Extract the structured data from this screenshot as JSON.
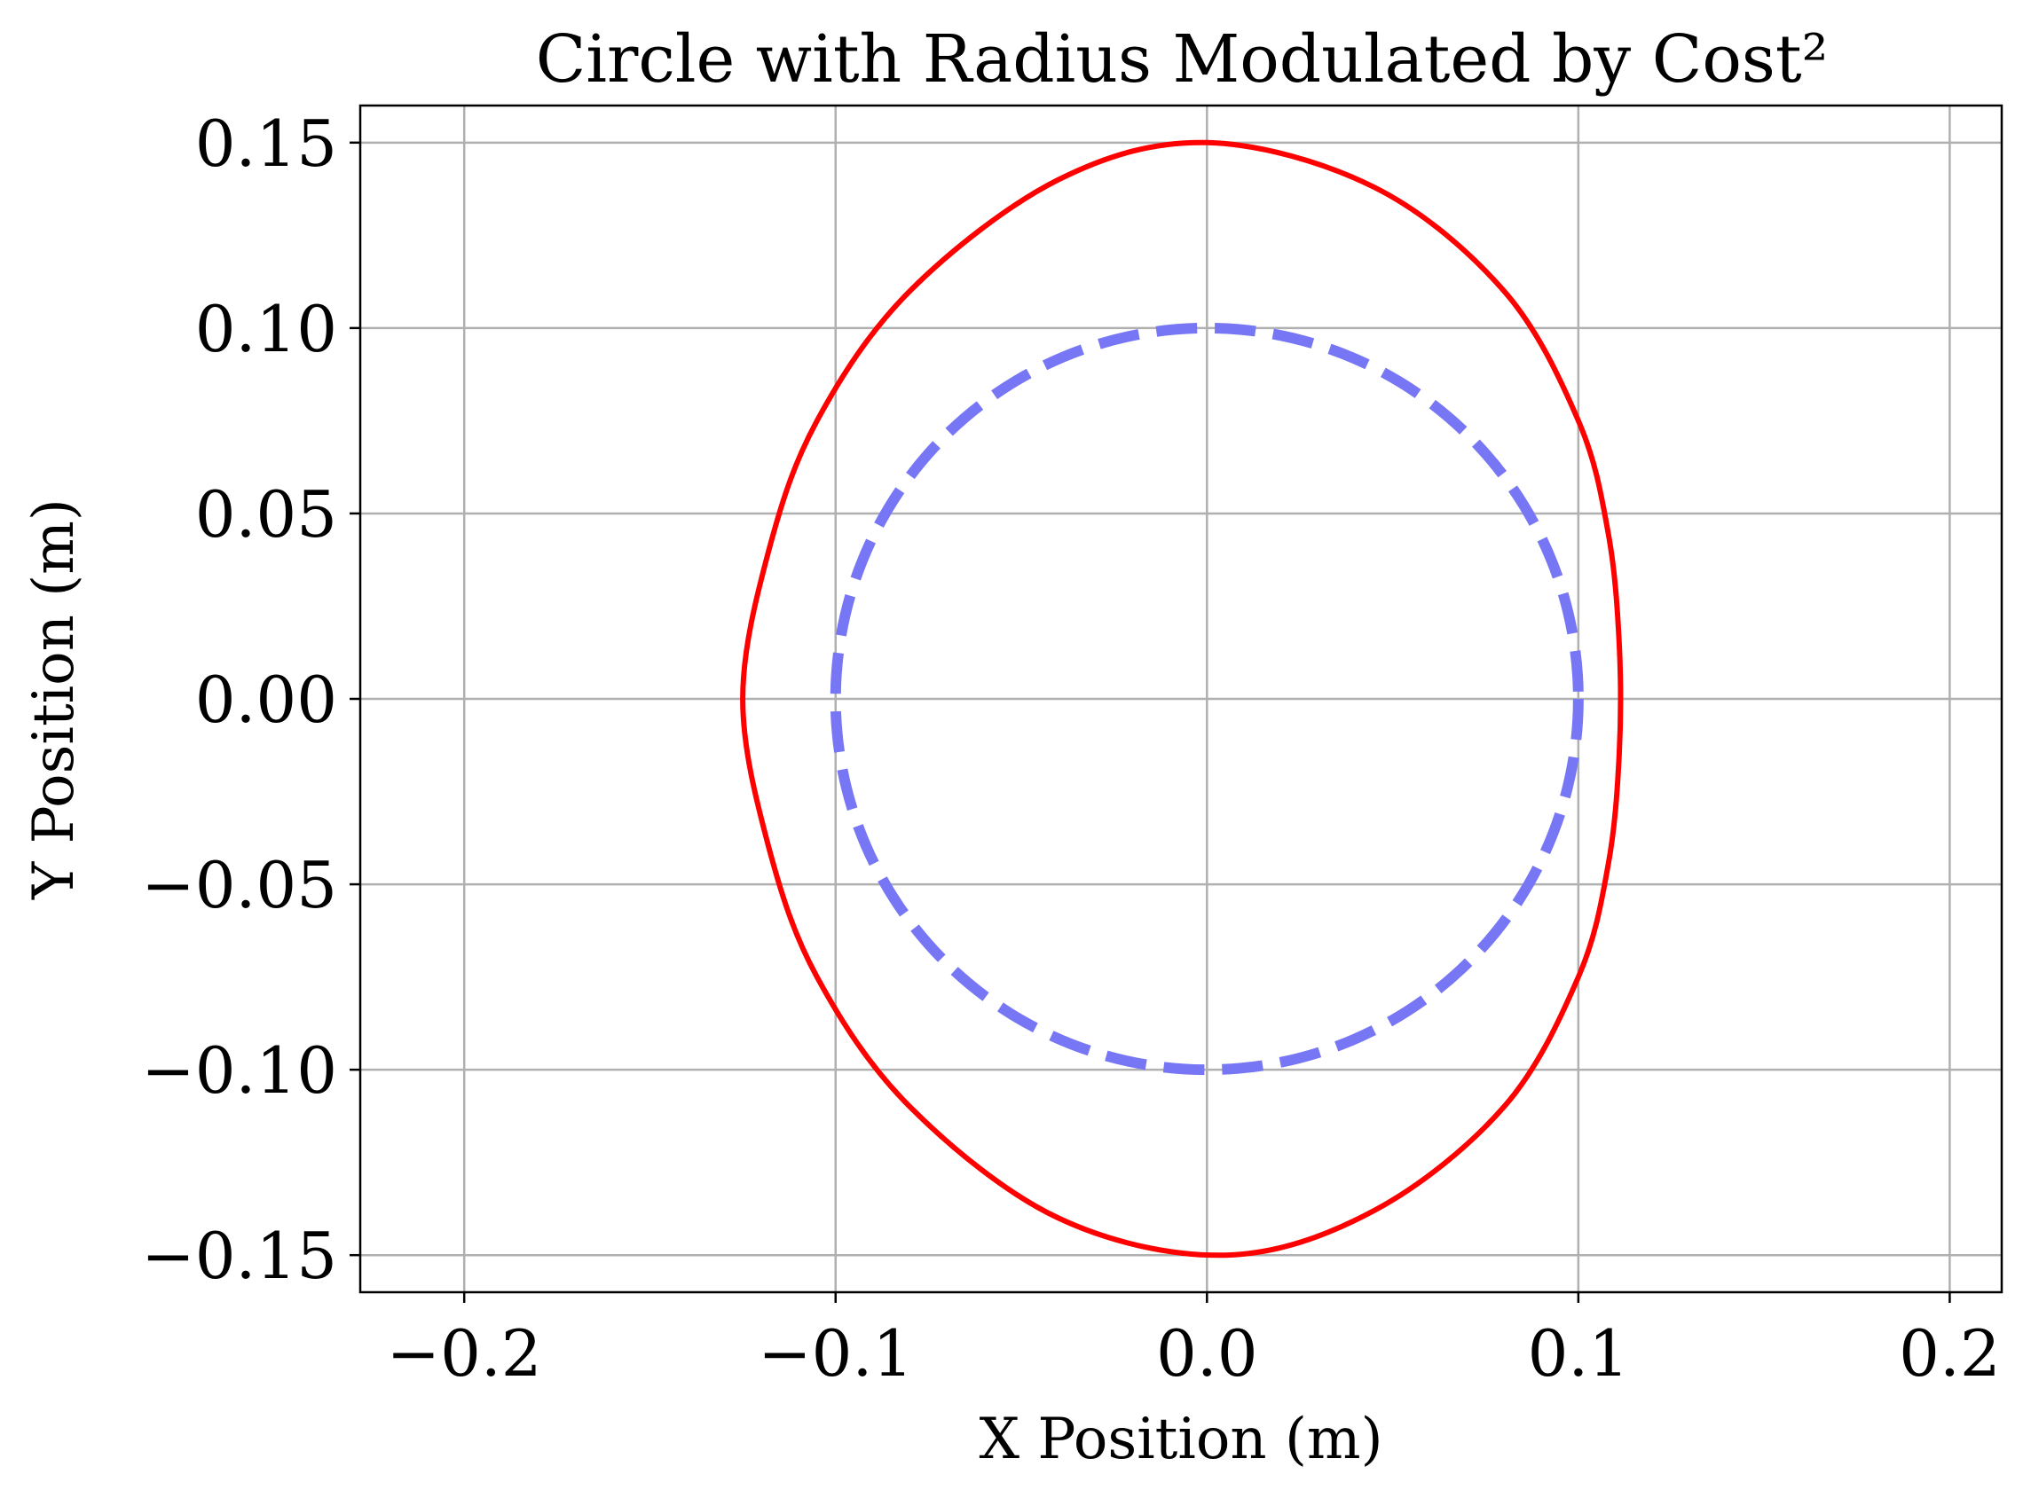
{
  "chart_data": {
    "type": "line",
    "title": "Circle with Radius Modulated by Cost²",
    "xlabel": "X Position (m)",
    "ylabel": "Y Position (m)",
    "xlim": [
      -0.228,
      0.214
    ],
    "ylim": [
      -0.16,
      0.16
    ],
    "xticks": [
      -0.2,
      -0.1,
      0.0,
      0.1,
      0.2
    ],
    "xtick_labels": [
      "−0.2",
      "−0.1",
      "0.0",
      "0.1",
      "0.2"
    ],
    "yticks": [
      0.15,
      0.1,
      0.05,
      0.0,
      -0.05,
      -0.1,
      -0.15
    ],
    "ytick_labels": [
      "0.15",
      "0.10",
      "0.05",
      "0.00",
      "−0.05",
      "−0.10",
      "−0.15"
    ],
    "grid": true,
    "series": [
      {
        "style": "solid",
        "color": "#ff0000",
        "x": [
          0.0,
          0.045,
          0.08,
          0.1,
          0.108,
          0.111,
          0.111,
          0.108,
          0.1,
          0.08,
          0.045,
          0.005,
          -0.04,
          -0.08,
          -0.105,
          -0.118,
          -0.125,
          -0.118,
          -0.105,
          -0.08,
          -0.04,
          0.0
        ],
        "y": [
          0.15,
          0.138,
          0.11,
          0.075,
          0.045,
          0.015,
          -0.015,
          -0.045,
          -0.075,
          -0.11,
          -0.138,
          -0.15,
          -0.14,
          -0.11,
          -0.075,
          -0.04,
          0.0,
          0.04,
          0.075,
          0.11,
          0.14,
          0.15
        ]
      },
      {
        "style": "dashed",
        "color": "#7777f5",
        "center": [
          0.0,
          0.0
        ],
        "radius": 0.1
      }
    ]
  }
}
